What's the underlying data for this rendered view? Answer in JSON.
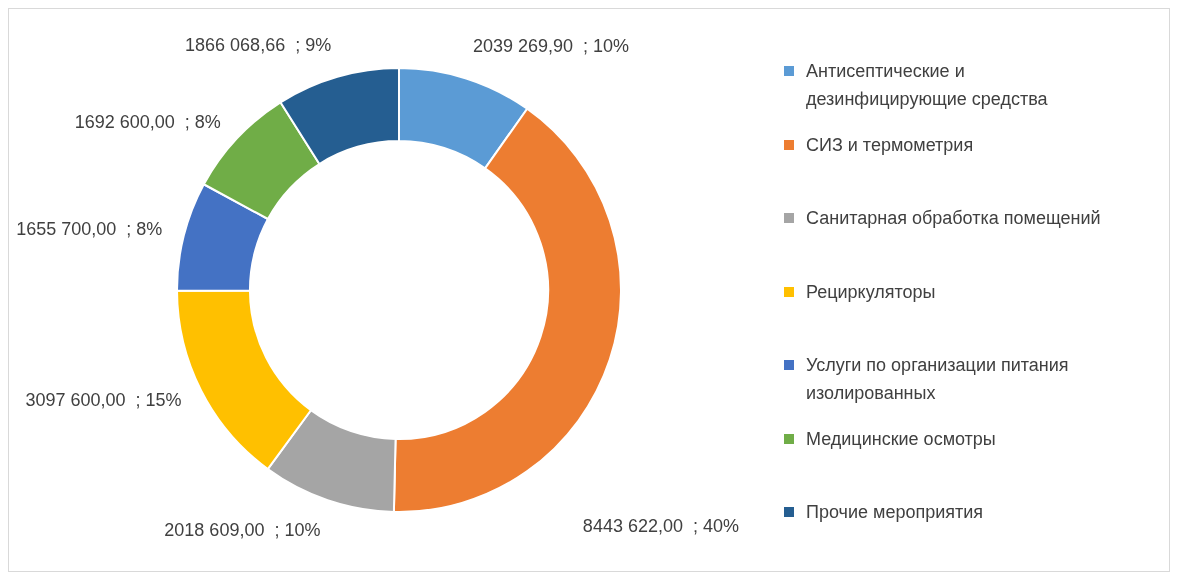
{
  "chart_data": {
    "type": "donut",
    "categories": [
      "Антисептические и дезинфицирующие средства",
      "СИЗ и термометрия",
      "Санитарная обработка помещений",
      "Рециркуляторы",
      "Услуги по организации питания изолированных",
      "Медицинские осмотры",
      "Прочие мероприятия"
    ],
    "values": [
      2039269.9,
      8443622.0,
      2018609.0,
      3097600.0,
      1655700.0,
      1692600.0,
      1866068.66
    ],
    "value_labels": [
      "2039 269,90  ; 10%",
      "8443 622,00  ; 40%",
      "2018 609,00  ; 10%",
      "3097 600,00  ; 15%",
      "1655 700,00  ; 8%",
      "1692 600,00  ; 8%",
      "1866 068,66  ; 9%"
    ],
    "colors": [
      "#5b9bd5",
      "#ed7d31",
      "#a5a5a5",
      "#ffc000",
      "#4472c4",
      "#70ad47",
      "#255e91"
    ],
    "legend": "right"
  }
}
